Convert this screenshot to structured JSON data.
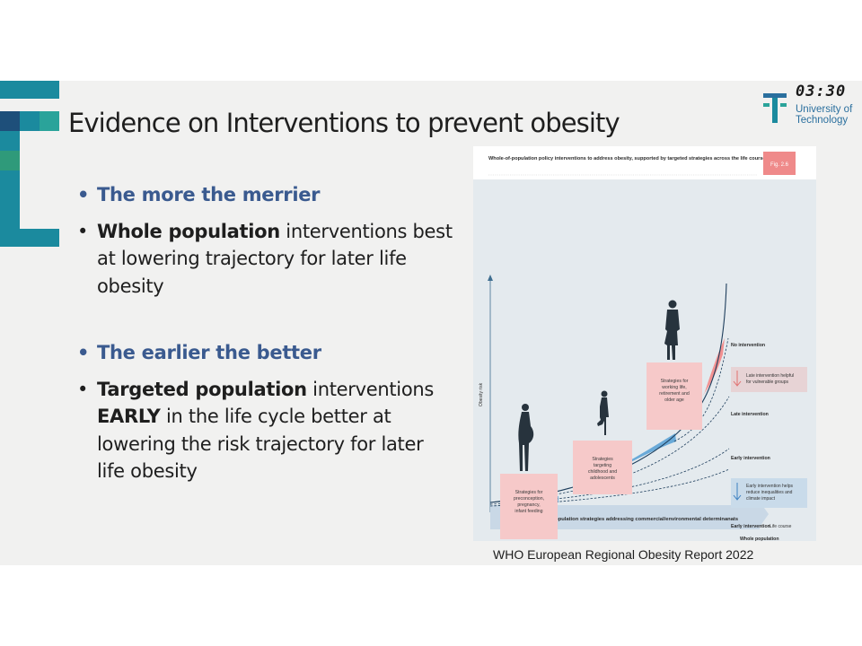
{
  "slide": {
    "title": "Evidence on Interventions to prevent obesity",
    "clock": "03:30",
    "logo": {
      "line1": "University of",
      "line2": "Technology"
    },
    "bullets": [
      {
        "text": "The more the merrier"
      },
      {
        "bold": "Whole population",
        "text": " interventions best at lowering trajectory for later life obesity"
      },
      {
        "text": "The earlier the better"
      },
      {
        "bold": "Targeted population",
        "text1": " interventions ",
        "bold2": "EARLY",
        "text2": " in the life cycle better at lowering the risk trajectory for  later life obesity"
      }
    ],
    "caption": "WHO European Regional Obesity Report 2022"
  },
  "figure": {
    "header": "Whole-of-population policy interventions to address obesity, supported by targeted strategies across the life course",
    "fig_label": "Fig. 2.6",
    "y_axis": "Obesity risk",
    "x_axis": "Life course",
    "bottom_band": "Whole-of-population strategies addressing commercial/environmental determinanats",
    "strategy_boxes": [
      "Strategies for preconception, pregnancy, infant feeding",
      "Strategies targeting childhood and adolescents",
      "Strategies for working life, retirement and older age"
    ],
    "curve_labels": [
      "No intervention",
      "Late intervention",
      "Early intervention",
      "Early intervention",
      "Whole population intervention"
    ],
    "notes": [
      "Late intervention helpful for vulnerable groups",
      "Early intervention helps reduce inequalities and climate impact"
    ],
    "colors": {
      "teal": "#1b8a9e",
      "navy": "#1e4f7a",
      "pink": "#f6c9c9",
      "fig_bg": "#e4eaee",
      "blue_fill": "#6aaad8",
      "accent": "#3a5a8f"
    }
  }
}
